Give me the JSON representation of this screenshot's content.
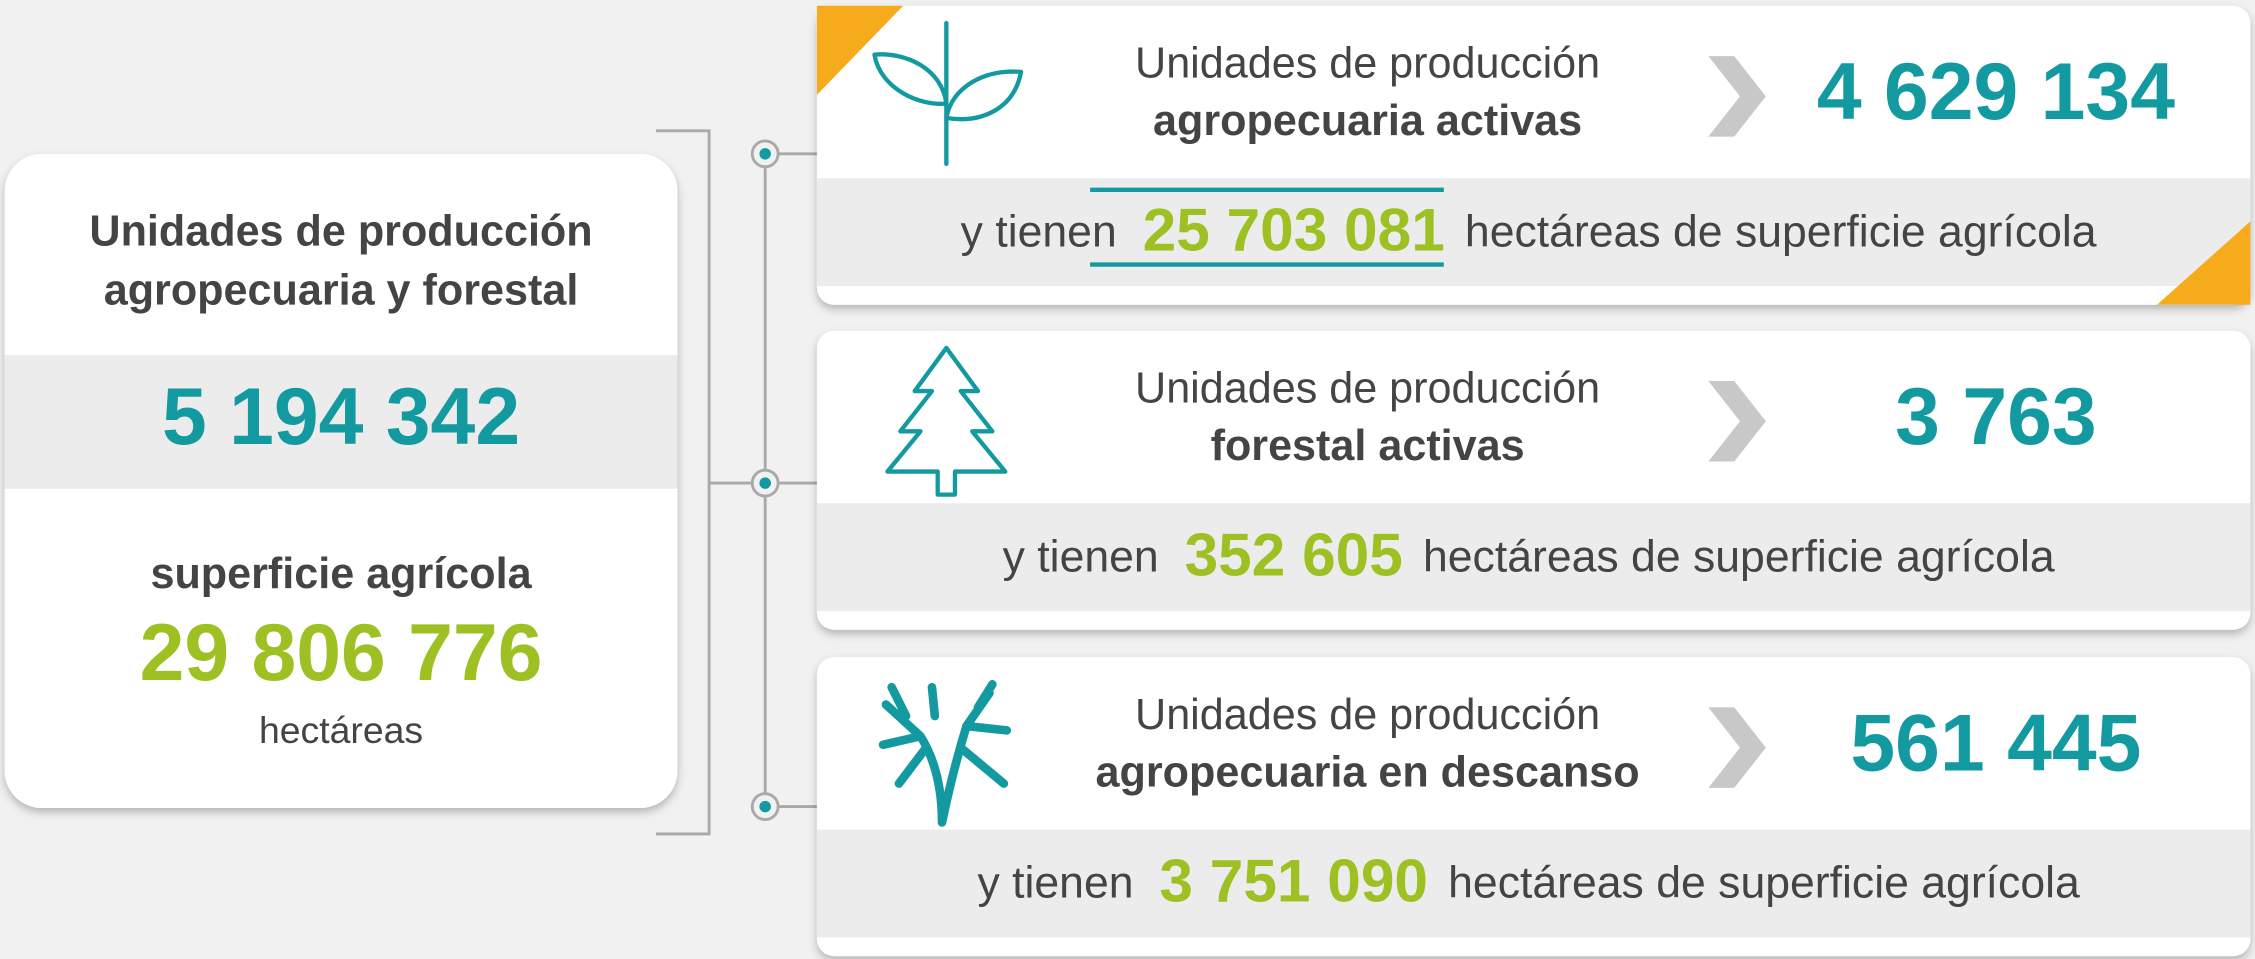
{
  "summary": {
    "title_line1": "Unidades de producción",
    "title_line2": "agropecuaria y forestal",
    "total": "5 194 342",
    "area_label": "superficie agrícola",
    "area": "29 806 776",
    "area_unit": "hectáreas"
  },
  "cards": [
    {
      "title_line1": "Unidades de producción",
      "title_line2": "agropecuaria activas",
      "value": "4 629 134",
      "prefix": "y tienen",
      "area": "25 703 081",
      "suffix": "hectáreas de superficie agrícola"
    },
    {
      "title_line1": "Unidades de producción",
      "title_line2": "forestal activas",
      "value": "3 763",
      "prefix": "y tienen",
      "area": "352 605",
      "suffix": "hectáreas de superficie agrícola"
    },
    {
      "title_line1": "Unidades de producción",
      "title_line2": "agropecuaria en descanso",
      "value": "561 445",
      "prefix": "y tienen",
      "area": "3 751 090",
      "suffix": "hectáreas de superficie agrícola"
    }
  ]
}
